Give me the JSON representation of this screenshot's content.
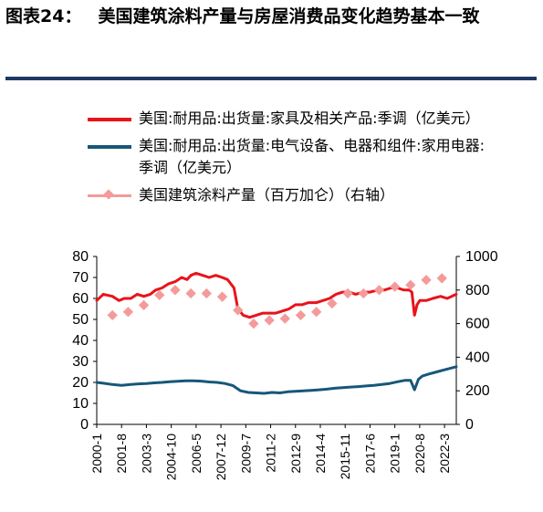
{
  "figure": {
    "number": "图表24：",
    "title": "美国建筑涂料产量与房屋消费品变化趋势基本一致"
  },
  "chart_data": {
    "type": "line",
    "x_ticks": [
      "2000-1",
      "2001-8",
      "2003-3",
      "2004-10",
      "2006-5",
      "2007-12",
      "2009-7",
      "2011-2",
      "2012-9",
      "2014-4",
      "2015-11",
      "2017-6",
      "2019-1",
      "2020-8",
      "2022-3"
    ],
    "x_range": [
      "2000-01",
      "2022-12"
    ],
    "y_left": {
      "min": 0,
      "max": 80,
      "ticks": [
        0,
        10,
        20,
        30,
        40,
        50,
        60,
        70,
        80
      ]
    },
    "y_right": {
      "min": 0,
      "max": 1000,
      "ticks": [
        0,
        200,
        400,
        600,
        800,
        1000
      ]
    },
    "grid": false,
    "legend_position": "top",
    "series": [
      {
        "name": "美国:耐用品:出货量:家具及相关产品:季调（亿美元）",
        "axis": "left",
        "style": "line",
        "color": "#e8131b",
        "points": [
          [
            "2000-01",
            59
          ],
          [
            "2000-06",
            62
          ],
          [
            "2001-01",
            61
          ],
          [
            "2001-06",
            59
          ],
          [
            "2001-10",
            60
          ],
          [
            "2002-03",
            60
          ],
          [
            "2002-08",
            62
          ],
          [
            "2003-01",
            61
          ],
          [
            "2003-06",
            62
          ],
          [
            "2003-10",
            64
          ],
          [
            "2004-03",
            65
          ],
          [
            "2004-08",
            67
          ],
          [
            "2005-01",
            68
          ],
          [
            "2005-06",
            70
          ],
          [
            "2005-10",
            69
          ],
          [
            "2006-01",
            71
          ],
          [
            "2006-05",
            72
          ],
          [
            "2006-10",
            71
          ],
          [
            "2007-03",
            70
          ],
          [
            "2007-08",
            71
          ],
          [
            "2008-01",
            70
          ],
          [
            "2008-05",
            69
          ],
          [
            "2008-10",
            65
          ],
          [
            "2009-01",
            55
          ],
          [
            "2009-05",
            52
          ],
          [
            "2009-10",
            51
          ],
          [
            "2010-03",
            52
          ],
          [
            "2010-08",
            53
          ],
          [
            "2011-01",
            53
          ],
          [
            "2011-06",
            53
          ],
          [
            "2011-11",
            54
          ],
          [
            "2012-04",
            55
          ],
          [
            "2012-09",
            57
          ],
          [
            "2013-02",
            57
          ],
          [
            "2013-07",
            58
          ],
          [
            "2014-01",
            58
          ],
          [
            "2014-06",
            59
          ],
          [
            "2014-11",
            60
          ],
          [
            "2015-04",
            62
          ],
          [
            "2015-09",
            63
          ],
          [
            "2016-02",
            63
          ],
          [
            "2016-07",
            62
          ],
          [
            "2017-01",
            63
          ],
          [
            "2017-06",
            63
          ],
          [
            "2017-12",
            64
          ],
          [
            "2018-05",
            64
          ],
          [
            "2018-10",
            65
          ],
          [
            "2019-03",
            65
          ],
          [
            "2019-08",
            64
          ],
          [
            "2019-12",
            64
          ],
          [
            "2020-02",
            63
          ],
          [
            "2020-04",
            52
          ],
          [
            "2020-06",
            57
          ],
          [
            "2020-08",
            59
          ],
          [
            "2021-01",
            59
          ],
          [
            "2021-06",
            60
          ],
          [
            "2021-12",
            61
          ],
          [
            "2022-05",
            60
          ],
          [
            "2022-12",
            62
          ]
        ]
      },
      {
        "name": "美国:耐用品:出货量:电气设备、电器和组件:家用电器:季调（亿美元）",
        "axis": "left",
        "style": "line",
        "color": "#175779",
        "points": [
          [
            "2000-01",
            20
          ],
          [
            "2000-06",
            19.6
          ],
          [
            "2001-01",
            19
          ],
          [
            "2001-08",
            18.6
          ],
          [
            "2002-03",
            19
          ],
          [
            "2002-09",
            19.3
          ],
          [
            "2003-03",
            19.5
          ],
          [
            "2003-09",
            19.8
          ],
          [
            "2004-03",
            20
          ],
          [
            "2004-09",
            20.3
          ],
          [
            "2005-03",
            20.5
          ],
          [
            "2005-09",
            20.8
          ],
          [
            "2006-03",
            20.8
          ],
          [
            "2006-09",
            20.6
          ],
          [
            "2007-03",
            20.2
          ],
          [
            "2007-09",
            20
          ],
          [
            "2008-03",
            19.5
          ],
          [
            "2008-09",
            18.5
          ],
          [
            "2009-03",
            16
          ],
          [
            "2009-09",
            15.2
          ],
          [
            "2010-03",
            15
          ],
          [
            "2010-09",
            14.8
          ],
          [
            "2011-03",
            15.2
          ],
          [
            "2011-09",
            15
          ],
          [
            "2012-03",
            15.5
          ],
          [
            "2012-09",
            15.8
          ],
          [
            "2013-03",
            16
          ],
          [
            "2013-09",
            16.2
          ],
          [
            "2014-03",
            16.5
          ],
          [
            "2014-09",
            16.8
          ],
          [
            "2015-03",
            17.2
          ],
          [
            "2015-09",
            17.5
          ],
          [
            "2016-03",
            17.8
          ],
          [
            "2016-09",
            18
          ],
          [
            "2017-03",
            18.3
          ],
          [
            "2017-09",
            18.6
          ],
          [
            "2018-03",
            19
          ],
          [
            "2018-09",
            19.5
          ],
          [
            "2019-03",
            20.3
          ],
          [
            "2019-09",
            21
          ],
          [
            "2020-01",
            21
          ],
          [
            "2020-04",
            16.5
          ],
          [
            "2020-07",
            21.5
          ],
          [
            "2020-10",
            23
          ],
          [
            "2021-03",
            24
          ],
          [
            "2021-09",
            25
          ],
          [
            "2022-03",
            26
          ],
          [
            "2022-12",
            27.5
          ]
        ]
      },
      {
        "name": "美国建筑涂料产量（百万加仑）（右轴）",
        "axis": "right",
        "style": "markers",
        "marker": "diamond",
        "color": "#f59a9a",
        "points": [
          [
            "2001-01",
            650
          ],
          [
            "2002-01",
            670
          ],
          [
            "2003-01",
            710
          ],
          [
            "2004-01",
            770
          ],
          [
            "2005-01",
            800
          ],
          [
            "2006-01",
            780
          ],
          [
            "2007-01",
            780
          ],
          [
            "2008-01",
            760
          ],
          [
            "2009-01",
            680
          ],
          [
            "2010-01",
            600
          ],
          [
            "2011-01",
            620
          ],
          [
            "2012-01",
            630
          ],
          [
            "2013-01",
            650
          ],
          [
            "2014-01",
            670
          ],
          [
            "2015-01",
            720
          ],
          [
            "2016-01",
            780
          ],
          [
            "2017-01",
            780
          ],
          [
            "2018-01",
            800
          ],
          [
            "2019-01",
            820
          ],
          [
            "2020-01",
            830
          ],
          [
            "2021-01",
            860
          ],
          [
            "2022-01",
            870
          ]
        ]
      }
    ]
  }
}
